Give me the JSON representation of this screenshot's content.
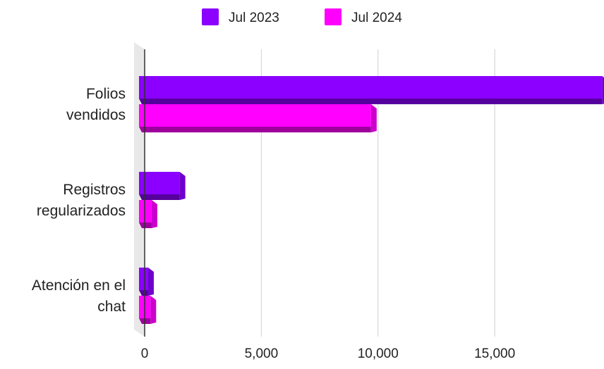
{
  "chart_data": {
    "type": "bar",
    "orientation": "horizontal",
    "style": "3d",
    "title": "",
    "xlabel": "",
    "ylabel": "",
    "categories": [
      [
        "Folios",
        "vendidos"
      ],
      [
        "Registros",
        "regularizados"
      ],
      [
        "Atención en el",
        "chat"
      ]
    ],
    "series": [
      {
        "name": "Jul 2023",
        "color": "#8b00ff",
        "values": [
          19600,
          1500,
          150
        ]
      },
      {
        "name": "Jul 2024",
        "color": "#ff00ff",
        "values": [
          9700,
          300,
          250
        ]
      }
    ],
    "xlim": [
      0,
      19500
    ],
    "xticks": [
      0,
      5000,
      10000,
      15000
    ],
    "xtick_labels": [
      "0",
      "5,000",
      "10,000",
      "15,000"
    ],
    "grid": true,
    "legend_position": "top"
  }
}
